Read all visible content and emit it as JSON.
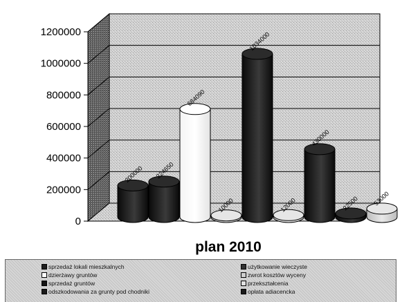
{
  "chart_data": {
    "type": "bar",
    "style": "3d-cylinder",
    "title": "plan 2010",
    "ylim": [
      0,
      1200000
    ],
    "yticks": [
      0,
      200000,
      400000,
      600000,
      800000,
      1000000,
      1200000
    ],
    "ytick_labels": [
      "0",
      "200000",
      "400000",
      "600000",
      "800000",
      "1000000",
      "1200000"
    ],
    "grid": true,
    "legend_position": "bottom",
    "series": [
      {
        "name": "sprzedaż lokali mieszkalnych",
        "value": 200000,
        "label": "200000",
        "color": "#1e1e1e"
      },
      {
        "name": "użytkowanie wieczyste",
        "value": 224650,
        "label": "224650",
        "color": "#333333"
      },
      {
        "name": "dzierżawy gruntów",
        "value": 684090,
        "label": "684090",
        "color": "#ffffff"
      },
      {
        "name": "zwrot kosztów wyceny",
        "value": 10000,
        "label": "10000",
        "color": "#d0d0d0"
      },
      {
        "name": "sprzedaż gruntów",
        "value": 1034000,
        "label": "1034000",
        "color": "#141414"
      },
      {
        "name": "przekształcenia",
        "value": 12000,
        "label": "12000",
        "color": "#e0e0e0"
      },
      {
        "name": "odszkodowania za grunty pod chodniki",
        "value": 430000,
        "label": "430000",
        "color": "#1a1a1a"
      },
      {
        "name": "opłata adiacencka",
        "value": 22500,
        "label": "22500",
        "color": "#1a1a1a"
      },
      {
        "name": "",
        "value": 53000,
        "label": "53000",
        "color": "#cfcfcf"
      }
    ],
    "legend": [
      "sprzedaż lokali mieszkalnych",
      "użytkowanie wieczyste",
      "dzierżawy gruntów",
      "zwrot kosztów wyceny",
      "sprzedaż gruntów",
      "przekształcenia",
      "odszkodowania za grunty pod chodniki",
      "opłata adiacencka"
    ]
  },
  "colors": {
    "wall": "#cfcfcf",
    "floor": "#bdbdbd",
    "legend_bg": "#d6d6d6"
  }
}
